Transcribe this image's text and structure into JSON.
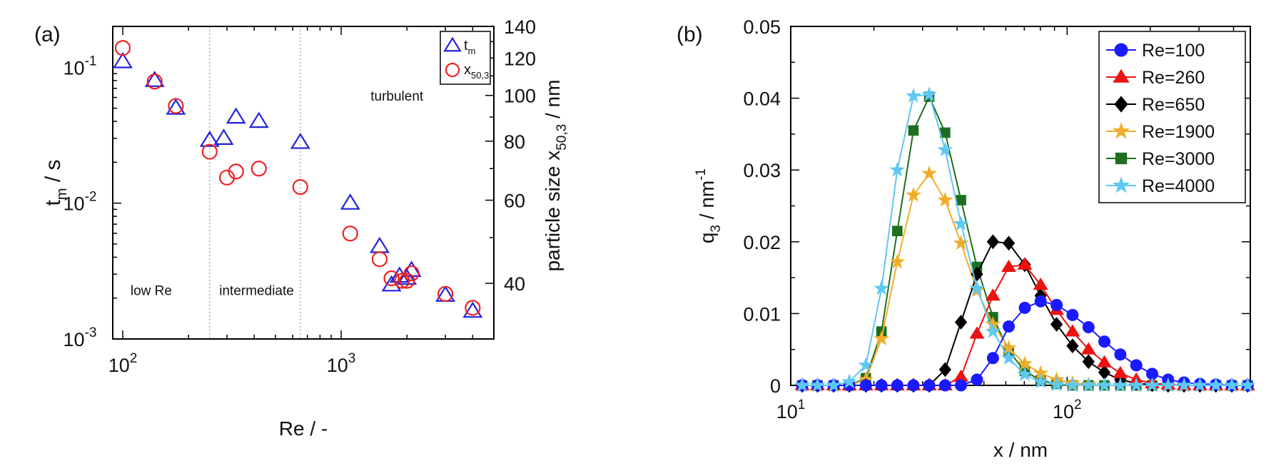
{
  "chart_data": [
    {
      "panel_label": "(a)",
      "type": "scatter",
      "xlabel": "Re / -",
      "x_scale": "log",
      "xlim": [
        90,
        5000
      ],
      "x_ticks": [
        {
          "value": 100,
          "base": "10",
          "exp": "2"
        },
        {
          "value": 1000,
          "base": "10",
          "exp": "3"
        }
      ],
      "ylabel": {
        "main": "t",
        "sub": "m",
        "rest": " / s"
      },
      "y_scale": "log",
      "ylim": [
        0.001,
        0.2
      ],
      "y_ticks": [
        {
          "value": 0.1,
          "base": "10",
          "exp": "-1"
        },
        {
          "value": 0.01,
          "base": "10",
          "exp": "-2"
        },
        {
          "value": 0.001,
          "base": "10",
          "exp": "-3"
        }
      ],
      "y2label": {
        "pre": "particle size x",
        "sub": "50,3",
        "rest": " / nm"
      },
      "y2_scale": "log",
      "y2lim": [
        30.5,
        140
      ],
      "y2_ticks": [
        40,
        60,
        80,
        100,
        120,
        140
      ],
      "grid": false,
      "legend": {
        "position": "top-right",
        "entries": [
          {
            "main": "t",
            "sub": "m",
            "marker": "triangle",
            "color": "#2222dd"
          },
          {
            "main": "x",
            "sub": "50,3",
            "marker": "circle",
            "color": "#ee2222"
          }
        ]
      },
      "regime_lines": [
        250,
        650
      ],
      "regime_labels": [
        {
          "text": "low Re",
          "x": 135,
          "y": 0.0021
        },
        {
          "text": "intermediate",
          "x": 410,
          "y": 0.0021
        },
        {
          "text": "turbulent",
          "x": 1800,
          "y": 0.057
        }
      ],
      "series": [
        {
          "name": "t",
          "axis": "left",
          "marker": "triangle",
          "color": "#2222dd",
          "x": [
            100,
            140,
            175,
            250,
            290,
            330,
            420,
            650,
            1100,
            1500,
            1700,
            1850,
            2000,
            2100,
            3000,
            4000
          ],
          "y": [
            0.11,
            0.08,
            0.05,
            0.029,
            0.03,
            0.043,
            0.04,
            0.028,
            0.01,
            0.0048,
            0.0025,
            0.0029,
            0.0028,
            0.0032,
            0.0021,
            0.0016
          ]
        },
        {
          "name": "x",
          "axis": "right",
          "marker": "circle",
          "color": "#ee2222",
          "x": [
            100,
            140,
            175,
            250,
            300,
            330,
            420,
            650,
            1100,
            1500,
            1700,
            1900,
            2000,
            2100,
            3000,
            4000
          ],
          "y": [
            126,
            107,
            95,
            76,
            67,
            69,
            70,
            64,
            51,
            45,
            41,
            40.5,
            40.5,
            42,
            38,
            35.5
          ]
        }
      ]
    },
    {
      "panel_label": "(b)",
      "type": "line",
      "xlabel": "x / nm",
      "x_scale": "log",
      "xlim": [
        10,
        460
      ],
      "x_ticks": [
        {
          "value": 10,
          "base": "10",
          "exp": "1"
        },
        {
          "value": 100,
          "base": "10",
          "exp": "2"
        }
      ],
      "ylabel": {
        "main": "q",
        "sub": "3",
        "rest": " / nm",
        "sup": "-1"
      },
      "ylim": [
        0,
        0.05
      ],
      "y_ticks": [
        "0",
        "0.01",
        "0.02",
        "0.03",
        "0.04",
        "0.05"
      ],
      "grid": false,
      "legend_position": "top-right",
      "x": [
        11,
        12.5,
        14.3,
        16.3,
        18.7,
        21.3,
        24.3,
        27.8,
        31.7,
        36.2,
        41.3,
        47.2,
        53.9,
        61.5,
        70.3,
        80.2,
        91.6,
        104.6,
        119.5,
        136.4,
        155.8,
        177.9,
        203.1,
        231.9,
        264.9,
        302.4,
        345.3,
        394.3,
        450
      ],
      "series": [
        {
          "name": "Re=100",
          "color": "#1a1aff",
          "marker": "circle",
          "values": [
            0,
            0,
            0,
            0,
            0,
            0,
            0,
            0,
            0,
            0,
            0,
            0.0008,
            0.0038,
            0.0082,
            0.0108,
            0.0117,
            0.0112,
            0.0098,
            0.0081,
            0.0061,
            0.0043,
            0.0028,
            0.0016,
            0.0008,
            0.0004,
            0.0002,
            0.0001,
            0,
            0
          ]
        },
        {
          "name": "Re=260",
          "color": "#ee1111",
          "marker": "triangle",
          "values": [
            0,
            0,
            0,
            0,
            0,
            0,
            0,
            0,
            0,
            0,
            0.0012,
            0.0072,
            0.0125,
            0.0165,
            0.0168,
            0.014,
            0.0105,
            0.0075,
            0.005,
            0.0032,
            0.0017,
            0.0008,
            0.0003,
            0.0001,
            0,
            0,
            0,
            0,
            0
          ]
        },
        {
          "name": "Re=650",
          "color": "#000000",
          "marker": "diamond",
          "values": [
            0,
            0,
            0,
            0,
            0,
            0,
            0,
            0,
            0,
            0.0022,
            0.0088,
            0.0155,
            0.02,
            0.0198,
            0.0168,
            0.0125,
            0.0085,
            0.0055,
            0.0033,
            0.0018,
            0.0008,
            0.0003,
            0.0001,
            0,
            0,
            0,
            0,
            0,
            0
          ]
        },
        {
          "name": "Re=1900",
          "color": "#f0ad2b",
          "marker": "star",
          "values": [
            0,
            0,
            0,
            0,
            0.0008,
            0.0065,
            0.0172,
            0.0265,
            0.0295,
            0.0258,
            0.0198,
            0.0132,
            0.0085,
            0.0052,
            0.003,
            0.0017,
            0.0008,
            0.0003,
            0.0001,
            0,
            0,
            0,
            0,
            0,
            0,
            0,
            0,
            0,
            0
          ]
        },
        {
          "name": "Re=3000",
          "color": "#1f6e1f",
          "marker": "square",
          "values": [
            0,
            0,
            0,
            0,
            0.001,
            0.0075,
            0.0215,
            0.0355,
            0.0402,
            0.0352,
            0.0258,
            0.0165,
            0.0095,
            0.0048,
            0.002,
            0.0007,
            0.0002,
            0,
            0,
            0,
            0,
            0,
            0,
            0,
            0,
            0,
            0,
            0,
            0
          ]
        },
        {
          "name": "Re=4000",
          "color": "#5ec8f2",
          "marker": "star",
          "values": [
            0,
            0,
            0,
            0.0005,
            0.0028,
            0.0135,
            0.03,
            0.0403,
            0.0405,
            0.0328,
            0.0225,
            0.0135,
            0.0075,
            0.0038,
            0.0015,
            0.0005,
            0.0001,
            0,
            0,
            0,
            0,
            0,
            0,
            0,
            0,
            0,
            0,
            0,
            0
          ]
        }
      ]
    }
  ]
}
